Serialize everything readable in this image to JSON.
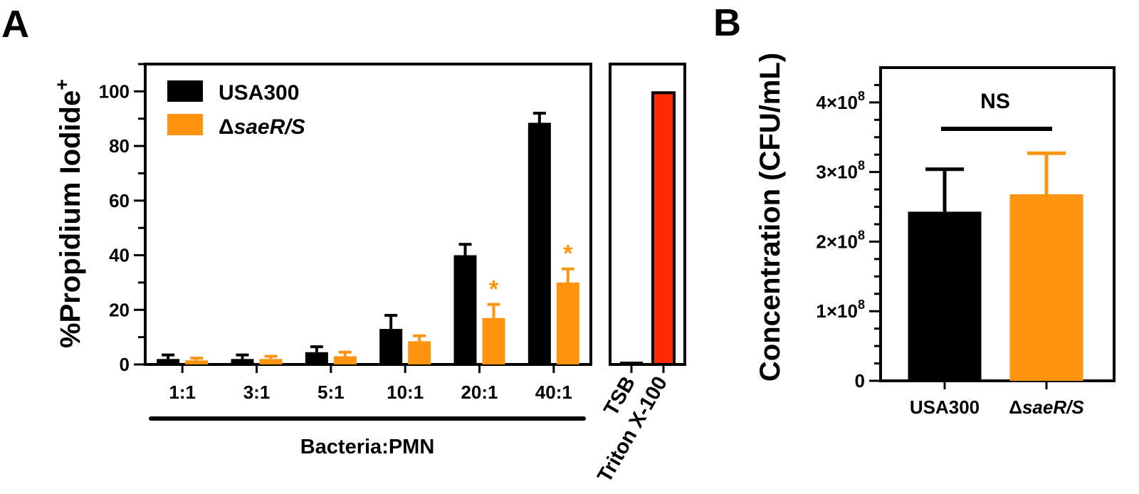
{
  "panels": {
    "a_label": "A",
    "b_label": "B"
  },
  "colors": {
    "usa300": "#000000",
    "mutant": "#ff9411",
    "triton": "#ff2a00",
    "axis": "#000000"
  },
  "chart_data": [
    {
      "id": "A-main",
      "type": "bar",
      "ylabel_main": "%Propidium Iodide",
      "ylabel_sup": "+",
      "ylim": [
        0,
        110
      ],
      "yticks": [
        0,
        20,
        40,
        60,
        80,
        100
      ],
      "categories": [
        "1:1",
        "3:1",
        "5:1",
        "10:1",
        "20:1",
        "40:1"
      ],
      "xlabel": "Bacteria:PMN",
      "legend": {
        "placement": "top-left",
        "entries": [
          {
            "series": 0,
            "text": "USA300",
            "italic_part": ""
          },
          {
            "series": 1,
            "text": "Δ",
            "italic_part": "saeR/S"
          }
        ]
      },
      "series": [
        {
          "name": "USA300",
          "color_key": "usa300",
          "values": [
            2,
            2,
            4.5,
            13,
            40,
            88.5
          ],
          "errors": [
            1.5,
            1.5,
            2,
            5,
            4,
            3.5
          ],
          "significant": [
            false,
            false,
            false,
            false,
            false,
            false
          ]
        },
        {
          "name": "ΔsaeR/S",
          "color_key": "mutant",
          "values": [
            1.5,
            2,
            3,
            8.5,
            17,
            30
          ],
          "errors": [
            0.8,
            1,
            1.5,
            2,
            5,
            5
          ],
          "significant": [
            false,
            false,
            false,
            false,
            true,
            true
          ]
        }
      ],
      "significance_mark": "*"
    },
    {
      "id": "A-controls",
      "type": "bar",
      "ylim": [
        0,
        110
      ],
      "categories": [
        "TSB",
        "Triton X-100"
      ],
      "series": [
        {
          "name": "",
          "values": [
            0.5,
            99.5
          ],
          "color_keys": [
            "usa300",
            "triton"
          ]
        }
      ]
    },
    {
      "id": "B",
      "type": "bar",
      "ylabel": "Concentration (CFU/mL)",
      "ylim": [
        0,
        450000000
      ],
      "yticks": [
        {
          "value": 0,
          "mantissa": "0",
          "exp": ""
        },
        {
          "value": 100000000,
          "mantissa": "1×10",
          "exp": "8"
        },
        {
          "value": 200000000,
          "mantissa": "2×10",
          "exp": "8"
        },
        {
          "value": 300000000,
          "mantissa": "3×10",
          "exp": "8"
        },
        {
          "value": 400000000,
          "mantissa": "4×10",
          "exp": "8"
        }
      ],
      "categories": [
        {
          "text": "USA300",
          "prefix": "",
          "italic": ""
        },
        {
          "text": "",
          "prefix": "Δ",
          "italic": "saeR/S"
        }
      ],
      "series": [
        {
          "name": "",
          "values": [
            243000000,
            268000000
          ],
          "errors": [
            61000000,
            59000000
          ],
          "color_keys": [
            "usa300",
            "mutant"
          ]
        }
      ],
      "annotation": "NS"
    }
  ]
}
